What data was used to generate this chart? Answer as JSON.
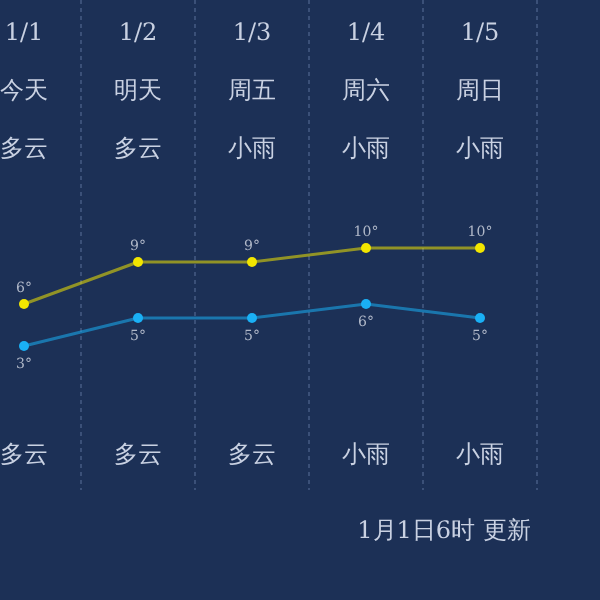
{
  "chart_data": {
    "type": "line",
    "categories": [
      "1/1",
      "1/2",
      "1/3",
      "1/4",
      "1/5"
    ],
    "marker": "circle",
    "grid": "x",
    "series": [
      {
        "color": "#f2e600",
        "values": [
          6,
          9,
          9,
          10,
          10
        ],
        "value_labels": [
          "6°",
          "9°",
          "9°",
          "10°",
          "10°"
        ]
      },
      {
        "color": "#1ab0f5",
        "values": [
          3,
          5,
          5,
          6,
          5
        ],
        "value_labels": [
          "3°",
          "5°",
          "5°",
          "6°",
          "5°"
        ]
      }
    ],
    "annotations": [
      "今天",
      "明天",
      "周五",
      "周六",
      "周日",
      "多云",
      "多云",
      "小雨",
      "小雨",
      "小雨",
      "多云",
      "多云",
      "多云",
      "小雨",
      "小雨",
      "1月1日6时 更新"
    ]
  }
}
